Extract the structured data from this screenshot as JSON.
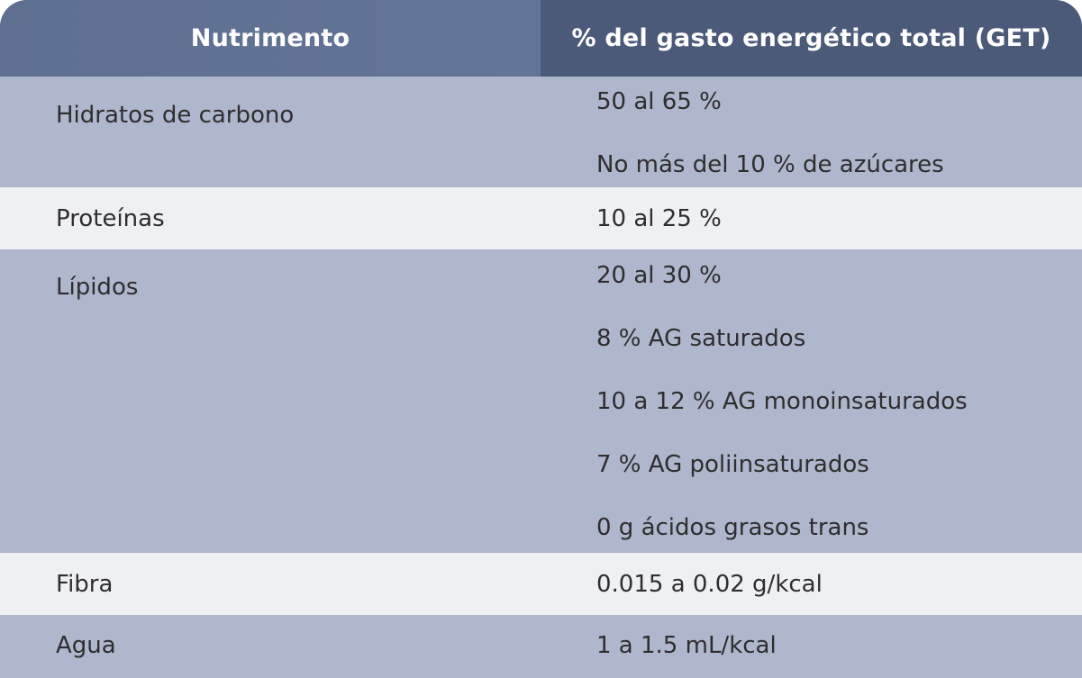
{
  "header": {
    "col1": "Nutrimento",
    "col2": "% del gasto energético total (GET)"
  },
  "rows": [
    {
      "name": "Hidratos de carbono",
      "values": [
        "50 al 65 %",
        "No más del 10 % de azúcares"
      ]
    },
    {
      "name": "Proteínas",
      "values": [
        "10 al 25 %"
      ]
    },
    {
      "name": "Lípidos",
      "values": [
        "20 al 30 %",
        "8 % AG saturados",
        "10 a 12 % AG monoinsaturados",
        "7 % AG poliinsaturados",
        "0 g ácidos grasos trans"
      ]
    },
    {
      "name": "Fibra",
      "values": [
        "0.015 a 0.02 g/kcal"
      ]
    },
    {
      "name": "Agua",
      "values": [
        "1 a 1.5 mL/kcal"
      ]
    }
  ],
  "colors": {
    "header_left": "#5f7091",
    "header_right": "#4b5a79",
    "row_dark": "#afb7cc",
    "row_light": "#eff0f4"
  }
}
